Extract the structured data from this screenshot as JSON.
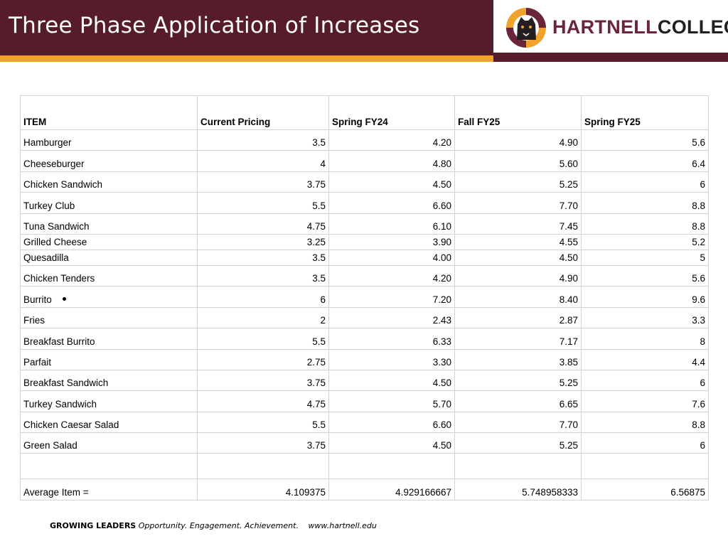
{
  "header": {
    "title": "Three Phase Application of Increases",
    "logo_text_part1": "HARTNELL",
    "logo_text_part2": "COLLEGE"
  },
  "colors": {
    "maroon": "#561c2a",
    "orange": "#f1a22d",
    "logo_maroon": "#6a2638"
  },
  "icons": {
    "logo": "hartnell-panther-logo-icon",
    "bullet": "bullet-dot-icon"
  },
  "table": {
    "columns": [
      "ITEM",
      "Current Pricing",
      "Spring FY24",
      "Fall FY25",
      "Spring FY25"
    ],
    "rows": [
      [
        "Hamburger",
        "3.5",
        "4.20",
        "4.90",
        "5.6"
      ],
      [
        "Cheeseburger",
        "4",
        "4.80",
        "5.60",
        "6.4"
      ],
      [
        "Chicken Sandwich",
        "3.75",
        "4.50",
        "5.25",
        "6"
      ],
      [
        "Turkey Club",
        "5.5",
        "6.60",
        "7.70",
        "8.8"
      ],
      [
        "Tuna Sandwich",
        "4.75",
        "6.10",
        "7.45",
        "8.8"
      ],
      [
        "Grilled Cheese",
        "3.25",
        "3.90",
        "4.55",
        "5.2"
      ],
      [
        "Quesadilla",
        "3.5",
        "4.00",
        "4.50",
        "5"
      ],
      [
        "Chicken Tenders",
        "3.5",
        "4.20",
        "4.90",
        "5.6"
      ],
      [
        "Burrito",
        "6",
        "7.20",
        "8.40",
        "9.6"
      ],
      [
        "Fries",
        "2",
        "2.43",
        "2.87",
        "3.3"
      ],
      [
        "Breakfast Burrito",
        "5.5",
        "6.33",
        "7.17",
        "8"
      ],
      [
        "Parfait",
        "2.75",
        "3.30",
        "3.85",
        "4.4"
      ],
      [
        "Breakfast Sandwich",
        "3.75",
        "4.50",
        "5.25",
        "6"
      ],
      [
        "Turkey Sandwich",
        "4.75",
        "5.70",
        "6.65",
        "7.6"
      ],
      [
        "Chicken Caesar Salad",
        "5.5",
        "6.60",
        "7.70",
        "8.8"
      ],
      [
        "Green Salad",
        "3.75",
        "4.50",
        "5.25",
        "6"
      ]
    ],
    "average": [
      "Average Item =",
      "4.109375",
      "4.929166667",
      "5.748958333",
      "6.56875"
    ]
  },
  "footer": {
    "growing": "GROWING LEADERS",
    "tagline": "Opportunity. Engagement. Achievement.",
    "url": "www.hartnell.edu"
  }
}
